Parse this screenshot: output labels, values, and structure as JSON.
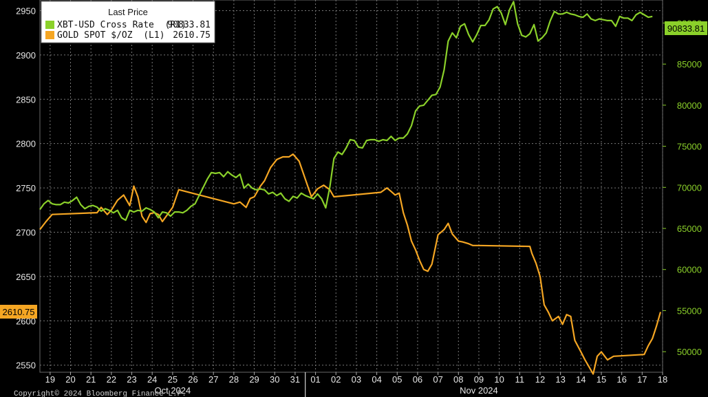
{
  "chart_data": {
    "type": "line",
    "legend": {
      "title": "Last Price",
      "placement": "top-left",
      "entries": [
        {
          "label": "XBT-USD Cross Rate  (R1)",
          "value": "90833.81",
          "color": "#8bd12a"
        },
        {
          "label": "GOLD SPOT $/OZ  (L1)",
          "value": "2610.75",
          "color": "#f5a623"
        }
      ]
    },
    "left_axis": {
      "ticks": [
        2550,
        2600,
        2650,
        2700,
        2750,
        2800,
        2850,
        2900,
        2950
      ],
      "range": [
        2542,
        2962
      ]
    },
    "right_axis": {
      "ticks": [
        50000,
        55000,
        60000,
        65000,
        70000,
        75000,
        80000,
        85000,
        90000
      ],
      "range": [
        47500,
        92800
      ]
    },
    "x_axis": {
      "day_labels": [
        "19",
        "20",
        "21",
        "22",
        "23",
        "24",
        "25",
        "26",
        "27",
        "28",
        "29",
        "30",
        "31",
        "01",
        "02",
        "03",
        "04",
        "05",
        "06",
        "07",
        "08",
        "09",
        "10",
        "11",
        "12",
        "13",
        "14",
        "15",
        "16",
        "17",
        "18"
      ],
      "range": [
        18.5,
        49.0
      ],
      "month_labels": [
        {
          "label": "Oct 2024",
          "at": 25.0
        },
        {
          "label": "Nov 2024",
          "at": 40.0
        }
      ],
      "month_divider": 31.5
    },
    "badges": {
      "right": "90833.81",
      "left": "2610.75"
    },
    "footer_text": "Copyright© 2024 Bloomberg Finance L.P.",
    "grid": true,
    "series": [
      {
        "name": "XBT-USD Cross Rate  (R1)",
        "axis": "right",
        "color": "#8bd12a",
        "x": [
          18.5,
          18.7,
          18.9,
          19.1,
          19.3,
          19.5,
          19.7,
          19.9,
          20.1,
          20.3,
          20.5,
          20.7,
          20.9,
          21.1,
          21.3,
          21.5,
          21.7,
          21.9,
          22.1,
          22.3,
          22.5,
          22.7,
          22.9,
          23.1,
          23.3,
          23.5,
          23.7,
          23.9,
          24.1,
          24.3,
          24.5,
          24.7,
          24.9,
          25.1,
          25.3,
          25.5,
          25.7,
          25.9,
          26.1,
          26.3,
          26.5,
          26.7,
          26.9,
          27.1,
          27.3,
          27.5,
          27.7,
          27.9,
          28.1,
          28.3,
          28.5,
          28.7,
          28.9,
          29.1,
          29.3,
          29.5,
          29.7,
          29.9,
          30.1,
          30.3,
          30.5,
          30.7,
          30.9,
          31.1,
          31.3,
          31.5,
          31.7,
          31.9,
          32.1,
          32.3,
          32.5,
          32.7,
          32.9,
          33.1,
          33.3,
          33.5,
          33.7,
          33.9,
          34.1,
          34.3,
          34.5,
          34.7,
          34.9,
          35.1,
          35.3,
          35.5,
          35.7,
          35.9,
          36.1,
          36.3,
          36.5,
          36.7,
          36.9,
          37.1,
          37.3,
          37.5,
          37.7,
          37.9,
          38.1,
          38.3,
          38.5,
          38.7,
          38.9,
          39.1,
          39.3,
          39.5,
          39.7,
          39.9,
          40.1,
          40.3,
          40.5,
          40.7,
          40.9,
          41.1,
          41.3,
          41.5,
          41.7,
          41.9,
          42.1,
          42.3,
          42.5,
          42.7,
          42.9,
          43.1,
          43.3,
          43.5,
          43.7,
          43.9,
          44.1,
          44.3,
          44.5,
          44.7,
          44.9,
          45.1,
          45.3,
          45.5,
          45.7,
          45.9,
          46.1,
          46.3,
          46.5,
          46.7,
          46.9,
          47.1,
          47.3,
          47.5,
          47.7,
          47.9,
          48.1,
          48.3,
          48.5
        ],
        "values": [
          67300,
          68000,
          68400,
          68000,
          67900,
          67900,
          68200,
          68100,
          68400,
          68800,
          67900,
          67400,
          67700,
          67800,
          67600,
          67100,
          67400,
          67200,
          66900,
          67200,
          66300,
          66000,
          67200,
          67000,
          67200,
          67100,
          67500,
          67300,
          67000,
          66300,
          67000,
          66900,
          66500,
          67000,
          67000,
          66900,
          67200,
          67700,
          68000,
          69000,
          70000,
          71000,
          71800,
          71700,
          71800,
          71300,
          71900,
          71500,
          71200,
          71600,
          69900,
          70400,
          69900,
          69700,
          69800,
          69700,
          69200,
          69400,
          69000,
          69300,
          68600,
          68300,
          68900,
          68700,
          69300,
          69000,
          68800,
          68600,
          69200,
          68600,
          67500,
          70000,
          73500,
          74300,
          74000,
          74800,
          75800,
          75700,
          74900,
          74800,
          75700,
          75800,
          75800,
          75600,
          75800,
          75700,
          76200,
          75700,
          76000,
          76000,
          76500,
          77500,
          79300,
          79900,
          80000,
          80600,
          81200,
          81300,
          82200,
          84300,
          87800,
          88800,
          88200,
          89600,
          89900,
          88600,
          87700,
          88600,
          89700,
          89700,
          90400,
          91700,
          92000,
          91200,
          89800,
          91600,
          92600,
          89900,
          88500,
          88300,
          88700,
          89800,
          87800,
          88200,
          88800,
          90300,
          91400,
          91100,
          91100,
          91300,
          91100,
          91000,
          90800,
          90700,
          91100,
          90500,
          90300,
          90500,
          90400,
          90300,
          90300,
          89600,
          90800,
          90600,
          90600,
          90300,
          91000,
          91300,
          91000,
          90700,
          90800
        ]
      },
      {
        "name": "GOLD SPOT $/OZ  (L1)",
        "axis": "left",
        "color": "#f5a623",
        "x": [
          18.5,
          18.8,
          19.1,
          21.3,
          21.5,
          21.8,
          22.0,
          22.3,
          22.6,
          22.9,
          23.1,
          23.3,
          23.5,
          23.7,
          23.9,
          24.1,
          24.3,
          24.5,
          25.0,
          25.3,
          28.0,
          28.3,
          28.6,
          28.8,
          29.0,
          29.3,
          29.5,
          29.8,
          30.1,
          30.4,
          30.7,
          30.9,
          31.2,
          31.5,
          31.8,
          32.1,
          32.4,
          32.7,
          32.9,
          35.2,
          35.5,
          35.7,
          35.9,
          36.1,
          36.3,
          36.5,
          36.7,
          36.9,
          37.1,
          37.3,
          37.5,
          37.7,
          38.0,
          38.3,
          38.5,
          38.7,
          39.0,
          39.2,
          39.5,
          39.7,
          40.0,
          42.5,
          42.6,
          42.8,
          43.0,
          43.2,
          43.4,
          43.6,
          43.9,
          44.1,
          44.3,
          44.5,
          44.7,
          45.0,
          45.2,
          45.4,
          45.6,
          45.8,
          46.0,
          46.3,
          46.6,
          48.1,
          48.3,
          48.5,
          48.7,
          48.9
        ],
        "values": [
          2703,
          2712,
          2720,
          2722,
          2728,
          2720,
          2725,
          2736,
          2742,
          2730,
          2752,
          2740,
          2718,
          2711,
          2721,
          2722,
          2720,
          2712,
          2728,
          2748,
          2732,
          2734,
          2728,
          2738,
          2740,
          2752,
          2758,
          2773,
          2782,
          2785,
          2785,
          2788,
          2780,
          2760,
          2740,
          2749,
          2753,
          2748,
          2740,
          2745,
          2750,
          2746,
          2742,
          2744,
          2722,
          2708,
          2690,
          2680,
          2668,
          2658,
          2656,
          2664,
          2697,
          2703,
          2710,
          2698,
          2690,
          2689,
          2687,
          2685,
          2685,
          2684,
          2676,
          2665,
          2650,
          2618,
          2610,
          2600,
          2605,
          2596,
          2607,
          2605,
          2578,
          2565,
          2556,
          2548,
          2540,
          2560,
          2565,
          2556,
          2560,
          2562,
          2572,
          2580,
          2594,
          2610
        ]
      }
    ]
  }
}
